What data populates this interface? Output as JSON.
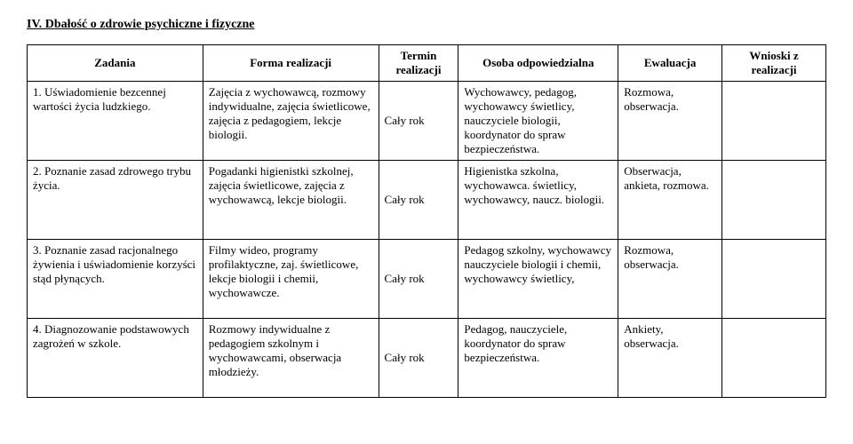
{
  "section_title": "IV. Dbałość o zdrowie psychiczne i fizyczne",
  "columns": {
    "c1": "Zadania",
    "c2": "Forma realizacji",
    "c3": "Termin realizacji",
    "c4": "Osoba odpowiedzialna",
    "c5": "Ewaluacja",
    "c6": "Wnioski z realizacji"
  },
  "rows": [
    {
      "zadania": "1. Uświadomienie bezcennej wartości życia ludzkiego.",
      "forma": "Zajęcia z wychowawcą, rozmowy indywidualne, zajęcia świetlicowe, zajęcia z pedagogiem, lekcje biologii.",
      "termin": "Cały rok",
      "osoba": "Wychowawcy, pedagog, wychowawcy świetlicy, nauczyciele biologii, koordynator do spraw bezpieczeństwa.",
      "ewaluacja": "Rozmowa, obserwacja.",
      "wnioski": ""
    },
    {
      "zadania": "2. Poznanie zasad zdrowego trybu życia.",
      "forma": "Pogadanki higienistki szkolnej, zajęcia świetlicowe, zajęcia z wychowawcą, lekcje biologii.",
      "termin": "Cały rok",
      "osoba": "Higienistka szkolna, wychowawca. świetlicy, wychowawcy, naucz. biologii.",
      "ewaluacja": "Obserwacja, ankieta, rozmowa.",
      "wnioski": ""
    },
    {
      "zadania": "3. Poznanie zasad racjonalnego żywienia i uświadomienie korzyści stąd płynących.",
      "forma": "Filmy wideo, programy profilaktyczne, zaj. świetlicowe, lekcje biologii i chemii, wychowawcze.",
      "termin": "Cały rok",
      "osoba": "Pedagog szkolny, wychowawcy nauczyciele biologii i chemii, wychowawcy świetlicy,",
      "ewaluacja": "Rozmowa, obserwacja.",
      "wnioski": ""
    },
    {
      "zadania": "4. Diagnozowanie podstawowych zagrożeń w szkole.",
      "forma": "Rozmowy indywidualne z pedagogiem szkolnym i wychowawcami, obserwacja młodzieży.",
      "termin": "Cały rok",
      "osoba": "Pedagog, nauczyciele, koordynator do spraw bezpieczeństwa.",
      "ewaluacja": "Ankiety, obserwacja.",
      "wnioski": ""
    }
  ]
}
